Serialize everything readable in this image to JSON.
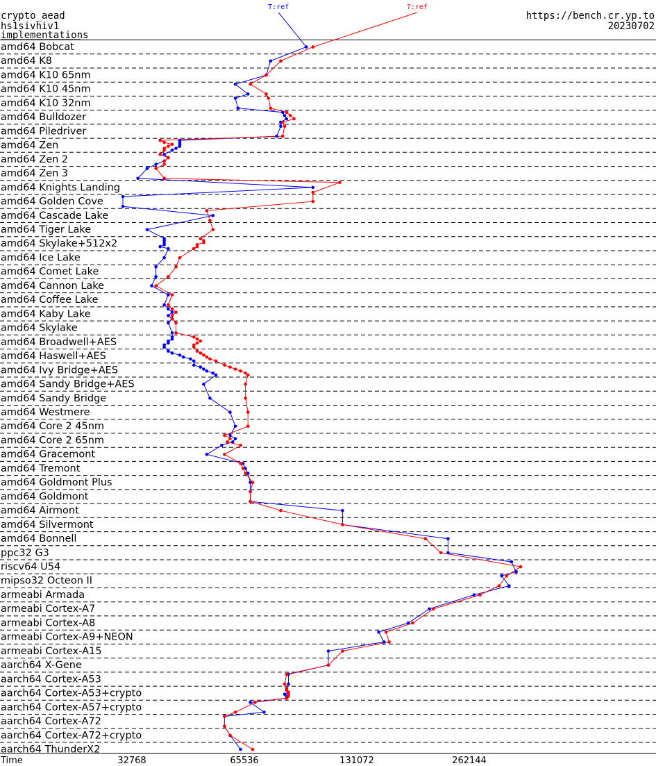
{
  "header": {
    "left_lines": [
      "crypto_aead",
      "hs1sivhiv1",
      "implementations"
    ],
    "url": "https://bench.cr.yp.to",
    "date": "20230702"
  },
  "chart_data": {
    "type": "line",
    "xlabel": "Time",
    "xscale": "log2",
    "xlim": [
      18000,
      490000
    ],
    "x_ticks": [
      32768,
      65536,
      131072,
      262144
    ],
    "x_tick_labels": [
      "32768",
      "65536",
      "131072",
      "262144"
    ],
    "series": [
      {
        "name": "T:ref",
        "color": "#0000ff"
      },
      {
        "name": "?:ref",
        "color": "#ff0000"
      }
    ],
    "platforms": [
      {
        "name": "amd64 Bobcat",
        "T": [
          96000
        ],
        "Q": [
          100000
        ]
      },
      {
        "name": "amd64 K8",
        "T": [
          77000
        ],
        "Q": [
          82000
        ]
      },
      {
        "name": "amd64 K10 65nm",
        "T": [
          75000
        ],
        "Q": [
          75000
        ]
      },
      {
        "name": "amd64 K10 45nm",
        "T": [
          62000,
          67000
        ],
        "Q": [
          68000,
          75000
        ]
      },
      {
        "name": "amd64 K10 32nm",
        "T": [
          62000,
          63000
        ],
        "Q": [
          76000,
          77000
        ]
      },
      {
        "name": "amd64 Bulldozer",
        "T": [
          83000,
          84000,
          85000,
          82000
        ],
        "Q": [
          85000,
          87000,
          89000,
          83000
        ]
      },
      {
        "name": "amd64 Piledriver",
        "T": [
          82000,
          80000
        ],
        "Q": [
          84000,
          83000
        ]
      },
      {
        "name": "amd64 Zen",
        "T": [
          44000,
          44000,
          44000,
          44000,
          43000,
          42000
        ],
        "Q": [
          39000,
          40000,
          42000,
          41000,
          40000,
          40000
        ]
      },
      {
        "name": "amd64 Zen 2",
        "T": [
          40000,
          41000,
          40000,
          38000
        ],
        "Q": [
          39000,
          41000,
          40000,
          40000
        ]
      },
      {
        "name": "amd64 Zen 3",
        "T": [
          36000,
          34000
        ],
        "Q": [
          38000,
          40000
        ]
      },
      {
        "name": "amd64 Knights Landing",
        "T": [
          100000
        ],
        "Q": [
          118000,
          100000
        ]
      },
      {
        "name": "amd64 Golden Cove",
        "T": [
          31000,
          31000
        ],
        "Q": [
          100000
        ]
      },
      {
        "name": "amd64 Cascade Lake",
        "T": [
          54000
        ],
        "Q": [
          52000,
          53000
        ]
      },
      {
        "name": "amd64 Tiger Lake",
        "T": [
          36000
        ],
        "Q": [
          54000
        ]
      },
      {
        "name": "amd64 Skylake+512x2",
        "T": [
          40000,
          40000,
          40000,
          40000,
          39000,
          41000
        ],
        "Q": [
          50000,
          51000,
          51000,
          49000,
          49000,
          48000
        ]
      },
      {
        "name": "amd64 Ice Lake",
        "T": [
          40000
        ],
        "Q": [
          44000
        ]
      },
      {
        "name": "amd64 Comet Lake",
        "T": [
          38000,
          38000
        ],
        "Q": [
          43000,
          41000
        ]
      },
      {
        "name": "amd64 Cannon Lake",
        "T": [
          37000
        ],
        "Q": [
          38000
        ]
      },
      {
        "name": "amd64 Coffee Lake",
        "T": [
          41000,
          40000
        ],
        "Q": [
          42000,
          41000
        ]
      },
      {
        "name": "amd64 Kaby Lake",
        "T": [
          41000,
          42000,
          41000,
          42000
        ],
        "Q": [
          42000,
          43000,
          42000,
          42000
        ]
      },
      {
        "name": "amd64 Skylake",
        "T": [
          41000,
          42000
        ],
        "Q": [
          43000,
          43000
        ]
      },
      {
        "name": "amd64 Broadwell+AES",
        "T": [
          42000,
          42000,
          41000,
          41000,
          40000,
          40000
        ],
        "Q": [
          48000,
          49000,
          50000,
          49000,
          48000,
          48000
        ]
      },
      {
        "name": "amd64 Haswell+AES",
        "T": [
          41000,
          42000,
          44000,
          45000,
          47000,
          48000
        ],
        "Q": [
          49000,
          50000,
          51000,
          52000,
          53000,
          55000
        ]
      },
      {
        "name": "amd64 Ivy Bridge+AES",
        "T": [
          48000,
          50000,
          51000,
          52000,
          54000,
          55000
        ],
        "Q": [
          58000,
          60000,
          62000,
          64000,
          66000,
          67000
        ]
      },
      {
        "name": "amd64 Sandy Bridge+AES",
        "T": [
          51000
        ],
        "Q": [
          66000
        ]
      },
      {
        "name": "amd64 Sandy Bridge",
        "T": [
          53000
        ],
        "Q": [
          66000
        ]
      },
      {
        "name": "amd64 Westmere",
        "T": [
          60000
        ],
        "Q": [
          67000
        ]
      },
      {
        "name": "amd64 Core 2 45nm",
        "T": [
          62000
        ],
        "Q": [
          67000
        ]
      },
      {
        "name": "amd64 Core 2 65nm",
        "T": [
          60000,
          62000,
          61000,
          57000
        ],
        "Q": [
          58000,
          60000,
          59000,
          64000
        ]
      },
      {
        "name": "amd64 Gracemont",
        "T": [
          52000
        ],
        "Q": [
          58000
        ]
      },
      {
        "name": "amd64 Tremont",
        "T": [
          65000,
          66000,
          67000
        ],
        "Q": [
          64000,
          65000,
          66000
        ]
      },
      {
        "name": "amd64 Goldmont Plus",
        "T": [
          68000
        ],
        "Q": [
          69000
        ]
      },
      {
        "name": "amd64 Goldmont",
        "T": [
          68000,
          68000
        ],
        "Q": [
          68000,
          68000
        ]
      },
      {
        "name": "amd64 Airmont",
        "T": [
          120000
        ],
        "Q": [
          82000
        ]
      },
      {
        "name": "amd64 Silvermont",
        "T": [
          120000
        ],
        "Q": [
          120000
        ]
      },
      {
        "name": "amd64 Bonnell",
        "T": [
          230000
        ],
        "Q": [
          200000
        ]
      },
      {
        "name": "ppc32 G3",
        "T": [
          230000
        ],
        "Q": [
          220000
        ]
      },
      {
        "name": "riscv64 U54",
        "T": [
          340000,
          350000
        ],
        "Q": [
          360000
        ]
      },
      {
        "name": "mipso32 Octeon II",
        "T": [
          320000,
          335000
        ],
        "Q": [
          330000,
          315000
        ]
      },
      {
        "name": "armeabi Armada",
        "T": [
          270000
        ],
        "Q": [
          280000
        ]
      },
      {
        "name": "armeabi Cortex-A7",
        "T": [
          205000
        ],
        "Q": [
          210000
        ]
      },
      {
        "name": "armeabi Cortex-A8",
        "T": [
          180000
        ],
        "Q": [
          185000
        ]
      },
      {
        "name": "armeabi Cortex-A9+NEON",
        "T": [
          150000,
          155000
        ],
        "Q": [
          157000,
          160000
        ]
      },
      {
        "name": "armeabi Cortex-A15",
        "T": [
          110000
        ],
        "Q": [
          120000
        ]
      },
      {
        "name": "aarch64 X-Gene",
        "T": [
          110000
        ],
        "Q": [
          110000
        ]
      },
      {
        "name": "aarch64 Cortex-A53",
        "T": [
          86000,
          86000
        ],
        "Q": [
          85000,
          84000
        ]
      },
      {
        "name": "aarch64 Cortex-A53+crypto",
        "T": [
          85000,
          85000,
          86000,
          84000,
          85000,
          85000
        ],
        "Q": [
          85000,
          85000,
          86000,
          86000,
          86000,
          85000
        ]
      },
      {
        "name": "aarch64 Cortex-A57+crypto",
        "T": [
          68000,
          74000
        ],
        "Q": [
          70000,
          62000
        ]
      },
      {
        "name": "aarch64 Cortex-A72",
        "T": [
          58000,
          58000
        ],
        "Q": [
          58000,
          58000
        ]
      },
      {
        "name": "aarch64 Cortex-A72+crypto",
        "T": [
          60000
        ],
        "Q": [
          60000
        ]
      },
      {
        "name": "aarch64 ThunderX2",
        "T": [
          64000
        ],
        "Q": [
          69000
        ]
      }
    ]
  }
}
